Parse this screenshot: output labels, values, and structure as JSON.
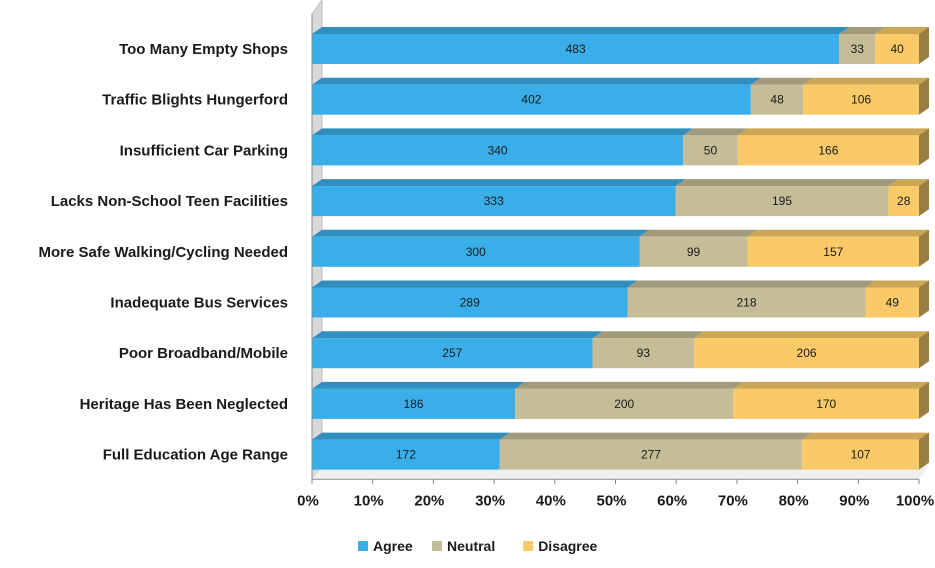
{
  "chart_data": {
    "type": "bar",
    "orientation": "horizontal",
    "stacked": "percent",
    "style": "3d",
    "categories": [
      "Too Many Empty Shops",
      "Traffic Blights Hungerford",
      "Insufficient Car Parking",
      "Lacks Non-School Teen Facilities",
      "More Safe Walking/Cycling Needed",
      "Inadequate Bus Services",
      "Poor Broadband/Mobile",
      "Heritage Has Been Neglected",
      "Full Education Age Range"
    ],
    "series": [
      {
        "name": "Agree",
        "color": "#3AAEE9",
        "values": [
          483,
          402,
          340,
          333,
          300,
          289,
          257,
          186,
          172
        ]
      },
      {
        "name": "Neutral",
        "color": "#C4BD97",
        "values": [
          33,
          48,
          50,
          195,
          99,
          218,
          93,
          200,
          277
        ]
      },
      {
        "name": "Disagree",
        "color": "#F9CA67",
        "values": [
          40,
          106,
          166,
          28,
          157,
          49,
          206,
          170,
          107
        ]
      }
    ],
    "x_ticks": [
      "0%",
      "10%",
      "20%",
      "30%",
      "40%",
      "50%",
      "60%",
      "70%",
      "80%",
      "90%",
      "100%"
    ],
    "xlim": [
      0,
      100
    ],
    "grid": false,
    "legend_position": "bottom",
    "title": "",
    "xlabel": "",
    "ylabel": ""
  }
}
